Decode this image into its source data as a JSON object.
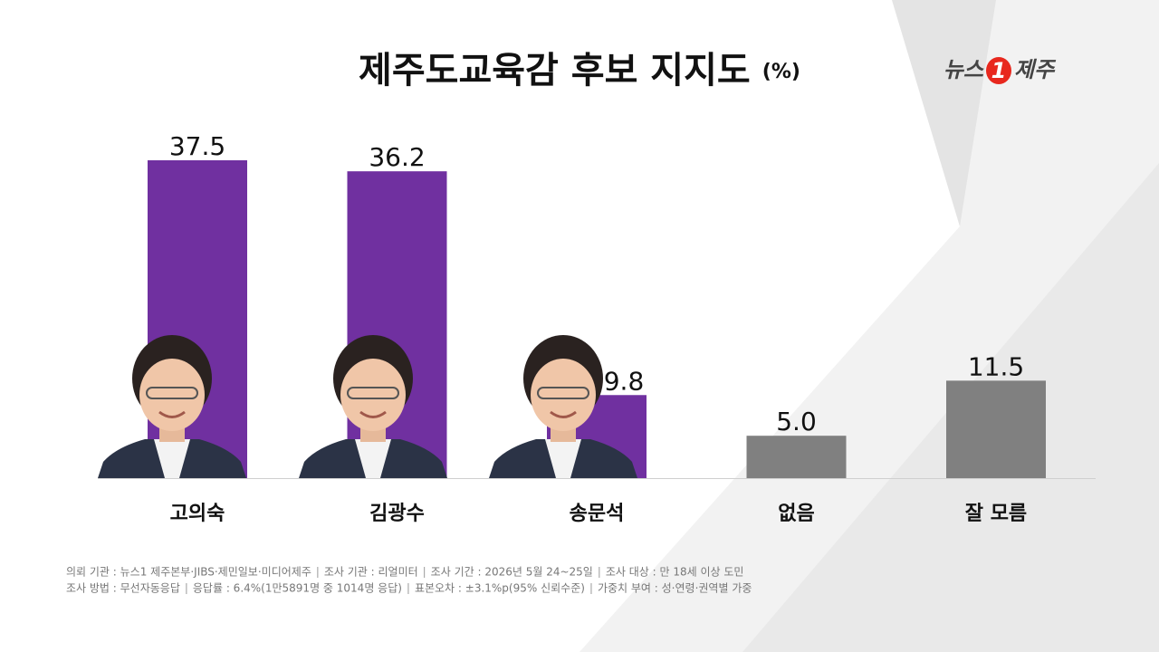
{
  "chart_data": {
    "type": "bar",
    "title": "제주도교육감 후보 지지도",
    "unit": "(%)",
    "logo": [
      "뉴스",
      "1",
      "제주"
    ],
    "categories": [
      "고의숙",
      "김광수",
      "송문석",
      "없음",
      "잘 모름"
    ],
    "values": [
      37.5,
      36.2,
      9.8,
      5.0,
      11.5
    ],
    "value_labels": [
      "37.5",
      "36.2",
      "9.8",
      "5.0",
      "11.5"
    ],
    "colors": [
      "#7030a0",
      "#7030a0",
      "#7030a0",
      "#808080",
      "#808080"
    ],
    "notes": [
      [
        "의뢰 기관 : 뉴스1 제주본부·JIBS·제민일보·미디어제주",
        "조사 기관 : 리얼미터",
        "조사 기간 : 2026년 5월 24~25일",
        "조사 대상 : 만 18세 이상 도민"
      ],
      [
        "조사 방법 : 무선자동응답",
        "응답률 : 6.4%(1만5891명 중 1014명 응답)",
        "표본오차 : ±3.1%p(95% 신뢰수준)",
        "가중치 부여 : 성·연령·권역별 가중"
      ]
    ]
  }
}
